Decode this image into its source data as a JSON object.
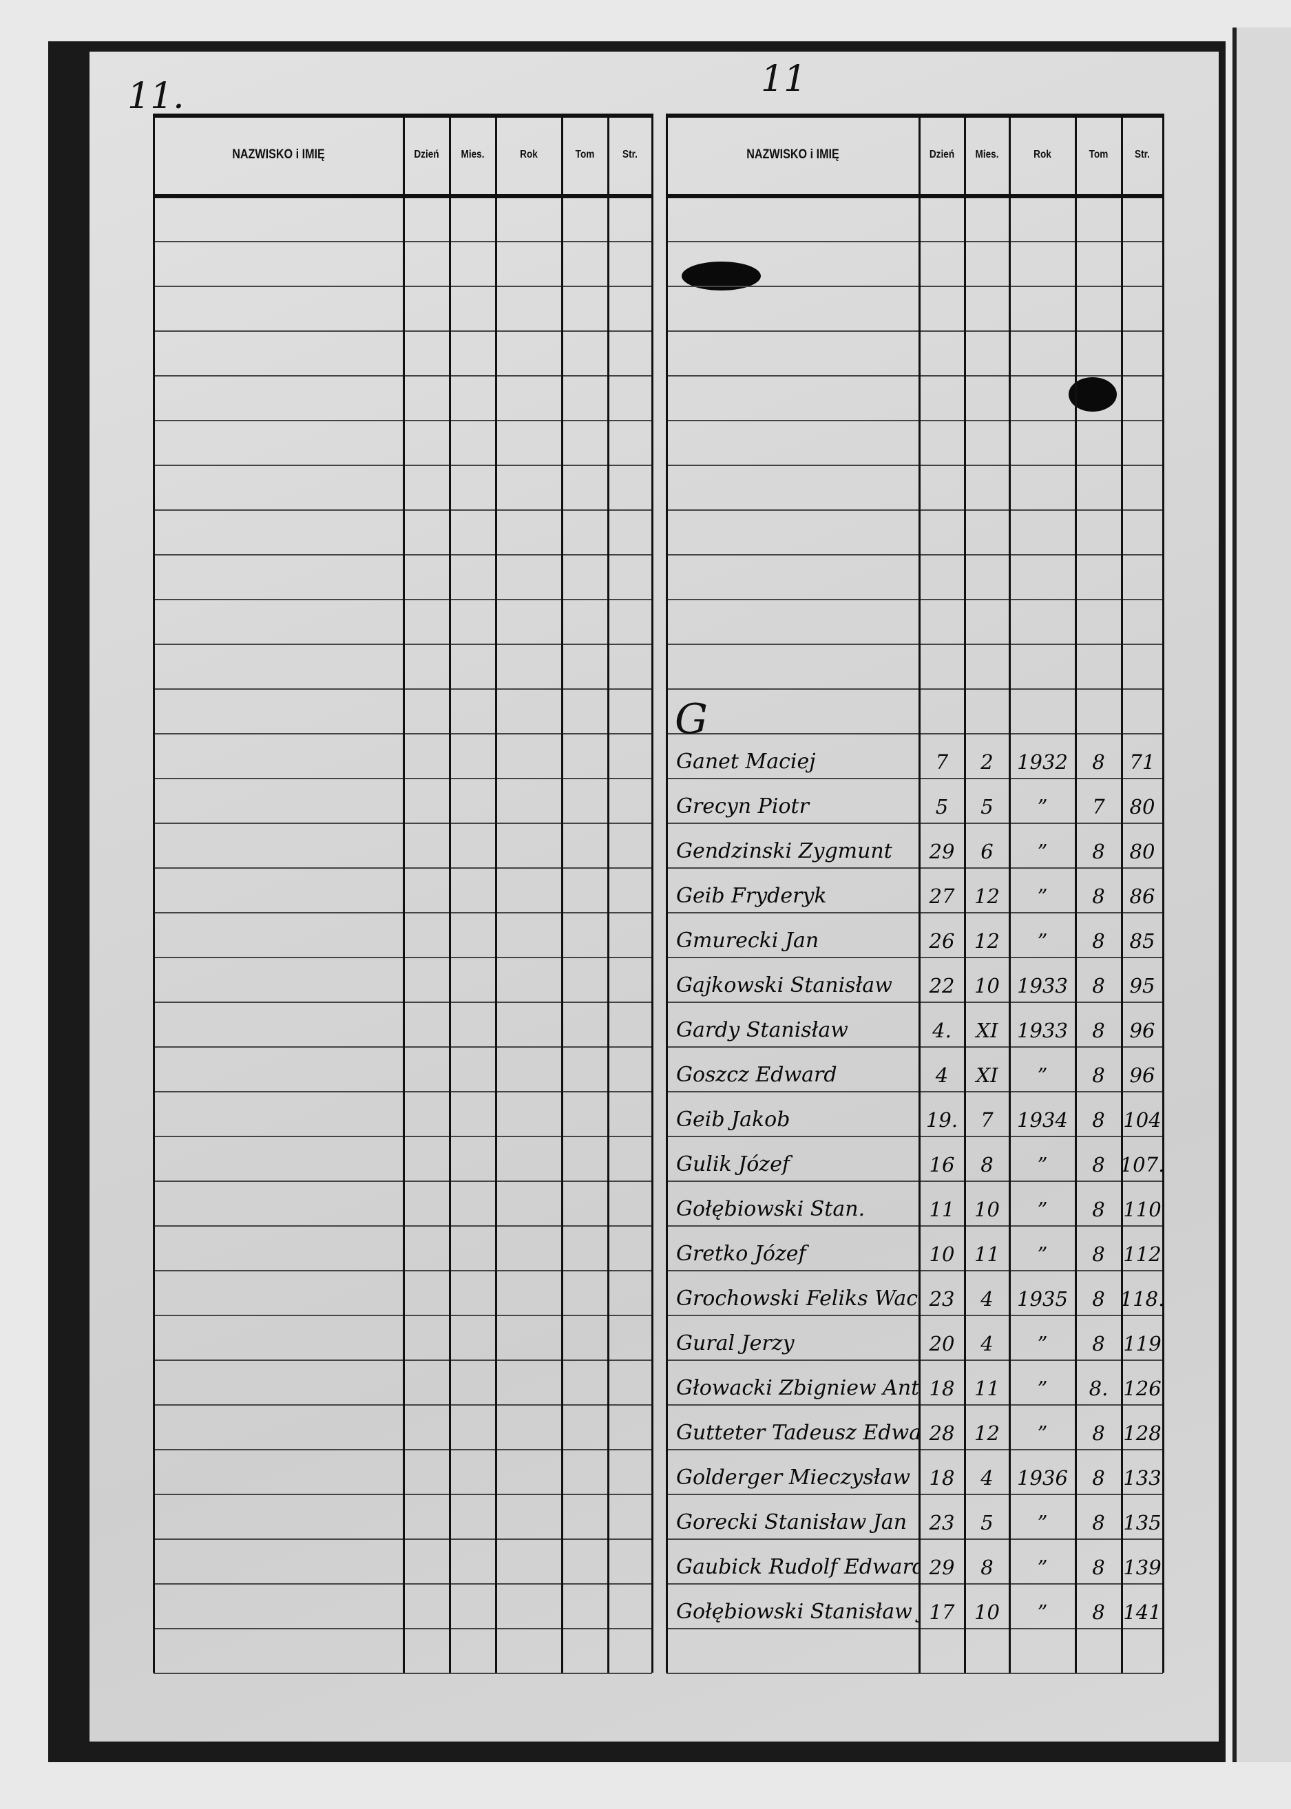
{
  "page_markers": {
    "left": "11.",
    "right": "11"
  },
  "columns": [
    "NAZWISKO i IMIĘ",
    "Dzień",
    "Mies.",
    "Rok",
    "Tom",
    "Str."
  ],
  "index_letter": "G",
  "left_entries": [],
  "right_entries": [
    {
      "name": "Ganet Maciej",
      "day": "7",
      "month": "2",
      "year": "1932",
      "tom": "8",
      "str": "71"
    },
    {
      "name": "Grecyn Piotr",
      "day": "5",
      "month": "5",
      "year": "”",
      "tom": "7",
      "str": "80"
    },
    {
      "name": "Gendzinski Zygmunt",
      "day": "29",
      "month": "6",
      "year": "”",
      "tom": "8",
      "str": "80"
    },
    {
      "name": "Geib Fryderyk",
      "day": "27",
      "month": "12",
      "year": "”",
      "tom": "8",
      "str": "86"
    },
    {
      "name": "Gmurecki Jan",
      "day": "26",
      "month": "12",
      "year": "”",
      "tom": "8",
      "str": "85"
    },
    {
      "name": "Gajkowski Stanisław",
      "day": "22",
      "month": "10",
      "year": "1933",
      "tom": "8",
      "str": "95"
    },
    {
      "name": "Gardy Stanisław",
      "day": "4.",
      "month": "XI",
      "year": "1933",
      "tom": "8",
      "str": "96"
    },
    {
      "name": "Goszcz Edward",
      "day": "4",
      "month": "XI",
      "year": "”",
      "tom": "8",
      "str": "96"
    },
    {
      "name": "Geib Jakob",
      "day": "19.",
      "month": "7",
      "year": "1934",
      "tom": "8",
      "str": "104"
    },
    {
      "name": "Gulik Józef",
      "day": "16",
      "month": "8",
      "year": "”",
      "tom": "8",
      "str": "107."
    },
    {
      "name": "Gołębiowski Stan.",
      "day": "11",
      "month": "10",
      "year": "”",
      "tom": "8",
      "str": "110"
    },
    {
      "name": "Gretko Józef",
      "day": "10",
      "month": "11",
      "year": "”",
      "tom": "8",
      "str": "112"
    },
    {
      "name": "Grochowski Feliks Wacław",
      "day": "23",
      "month": "4",
      "year": "1935",
      "tom": "8",
      "str": "118."
    },
    {
      "name": "Gural Jerzy",
      "day": "20",
      "month": "4",
      "year": "”",
      "tom": "8",
      "str": "119"
    },
    {
      "name": "Głowacki Zbigniew Antoni",
      "day": "18",
      "month": "11",
      "year": "”",
      "tom": "8.",
      "str": "126"
    },
    {
      "name": "Gutteter Tadeusz Edward",
      "day": "28",
      "month": "12",
      "year": "”",
      "tom": "8",
      "str": "128"
    },
    {
      "name": "Golderger Mieczysław",
      "day": "18",
      "month": "4",
      "year": "1936",
      "tom": "8",
      "str": "133"
    },
    {
      "name": "Gorecki Stanisław Jan",
      "day": "23",
      "month": "5",
      "year": "”",
      "tom": "8",
      "str": "135"
    },
    {
      "name": "Gaubick Rudolf Edward",
      "day": "29",
      "month": "8",
      "year": "”",
      "tom": "8",
      "str": "139"
    },
    {
      "name": "Gołębiowski Stanisław Jerzy",
      "day": "17",
      "month": "10",
      "year": "”",
      "tom": "8",
      "str": "141"
    }
  ]
}
